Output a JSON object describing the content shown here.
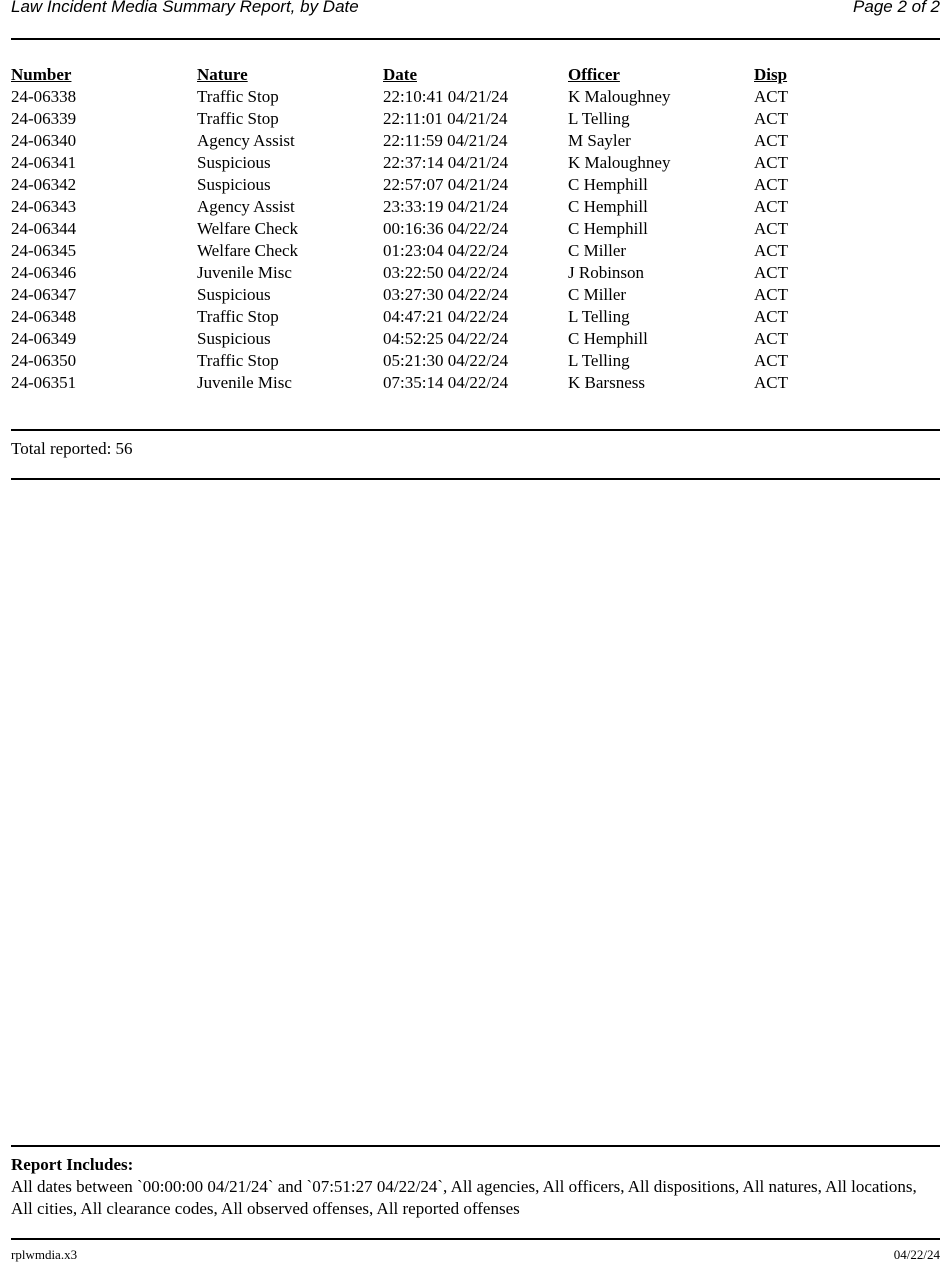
{
  "header": {
    "title": "Law Incident Media Summary Report, by Date",
    "page": "Page 2 of 2"
  },
  "table": {
    "columns": [
      "Number",
      "Nature",
      "Date",
      "Officer",
      "Disp"
    ],
    "rows": [
      [
        "24-06338",
        "Traffic Stop",
        "22:10:41 04/21/24",
        "K Maloughney",
        "ACT"
      ],
      [
        "24-06339",
        "Traffic Stop",
        "22:11:01 04/21/24",
        "L Telling",
        "ACT"
      ],
      [
        "24-06340",
        "Agency Assist",
        "22:11:59 04/21/24",
        "M Sayler",
        "ACT"
      ],
      [
        "24-06341",
        "Suspicious",
        "22:37:14 04/21/24",
        "K Maloughney",
        "ACT"
      ],
      [
        "24-06342",
        "Suspicious",
        "22:57:07 04/21/24",
        "C Hemphill",
        "ACT"
      ],
      [
        "24-06343",
        "Agency Assist",
        "23:33:19 04/21/24",
        "C Hemphill",
        "ACT"
      ],
      [
        "24-06344",
        "Welfare Check",
        "00:16:36 04/22/24",
        "C Hemphill",
        "ACT"
      ],
      [
        "24-06345",
        "Welfare Check",
        "01:23:04 04/22/24",
        "C Miller",
        "ACT"
      ],
      [
        "24-06346",
        "Juvenile Misc",
        "03:22:50 04/22/24",
        "J Robinson",
        "ACT"
      ],
      [
        "24-06347",
        "Suspicious",
        "03:27:30 04/22/24",
        "C Miller",
        "ACT"
      ],
      [
        "24-06348",
        "Traffic Stop",
        "04:47:21 04/22/24",
        "L Telling",
        "ACT"
      ],
      [
        "24-06349",
        "Suspicious",
        "04:52:25 04/22/24",
        "C Hemphill",
        "ACT"
      ],
      [
        "24-06350",
        "Traffic Stop",
        "05:21:30 04/22/24",
        "L Telling",
        "ACT"
      ],
      [
        "24-06351",
        "Juvenile Misc",
        "07:35:14 04/22/24",
        "K Barsness",
        "ACT"
      ]
    ]
  },
  "total": "Total reported: 56",
  "includes": {
    "heading": "Report Includes:",
    "text": "All dates between `00:00:00 04/21/24` and `07:51:27 04/22/24`, All agencies, All officers, All dispositions, All natures, All locations, All cities, All clearance codes, All observed offenses, All reported offenses"
  },
  "footer": {
    "left": "rplwmdia.x3",
    "right": "04/22/24"
  }
}
